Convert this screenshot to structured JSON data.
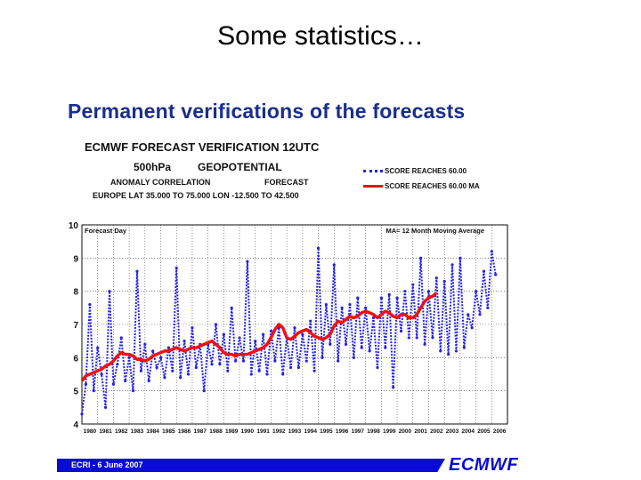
{
  "slide": {
    "title": "Some statistics…",
    "subtitle": "Permanent verifications of the forecasts"
  },
  "chart_header": {
    "line1": "ECMWF  FORECAST  VERIFICATION  12UTC",
    "level": "500hPa",
    "field": "GEOPOTENTIAL",
    "score_name": "ANOMALY CORRELATION",
    "forecast_label": "FORECAST",
    "domain": "EUROPE    LAT  35.000 TO  75.000  LON  -12.500 TO   42.500"
  },
  "legend": {
    "blue": "SCORE REACHES  60.00",
    "red": "SCORE REACHES  60.00 MA"
  },
  "footer": {
    "text": "ECRI  -  6 June 2007",
    "brand": "ECMWF"
  },
  "colors": {
    "monthly": "#2222ee",
    "moving_avg": "#ee1111",
    "brand": "#0a0ad8",
    "subtitle": "#1a2e8c"
  },
  "chart_data": {
    "type": "line",
    "ylabel": "Forecast Day",
    "annotation": "MA= 12 Month   Moving Average",
    "ylim": [
      4,
      10
    ],
    "yticks": [
      4,
      5,
      6,
      7,
      8,
      9,
      10
    ],
    "xlim": [
      1980,
      2007
    ],
    "xticks": [
      "1980",
      "1981",
      "1982",
      "1983",
      "1984",
      "1985",
      "1986",
      "1987",
      "1988",
      "1989",
      "1990",
      "1991",
      "1992",
      "1993",
      "1994",
      "1995",
      "1996",
      "1997",
      "1998",
      "1999",
      "2000",
      "2001",
      "2002",
      "2003",
      "2004",
      "2005",
      "2006"
    ],
    "grid": true,
    "series": [
      {
        "name": "SCORE REACHES  60.00",
        "style": "dotted",
        "x_start": 1980.0,
        "x_step": 0.25,
        "values": [
          4.3,
          5.2,
          7.6,
          5.0,
          6.3,
          5.5,
          4.5,
          8.0,
          5.2,
          5.8,
          6.6,
          5.3,
          6.0,
          5.0,
          8.6,
          5.6,
          6.4,
          5.3,
          6.2,
          5.7,
          6.0,
          5.4,
          6.3,
          5.6,
          8.7,
          5.4,
          6.5,
          5.5,
          6.9,
          5.7,
          6.4,
          5.0,
          6.4,
          5.8,
          7.0,
          5.8,
          6.7,
          5.6,
          7.5,
          5.9,
          6.6,
          5.9,
          8.9,
          5.5,
          6.5,
          5.6,
          6.7,
          5.5,
          6.8,
          5.9,
          6.9,
          5.5,
          6.6,
          5.7,
          6.9,
          5.7,
          6.7,
          5.9,
          7.1,
          5.6,
          9.3,
          6.0,
          7.6,
          6.4,
          8.8,
          5.9,
          7.5,
          6.4,
          7.6,
          6.0,
          7.8,
          6.3,
          7.5,
          6.2,
          7.2,
          5.7,
          7.8,
          6.3,
          7.9,
          5.1,
          7.8,
          6.8,
          8.0,
          6.6,
          8.2,
          6.6,
          9.0,
          6.4,
          8.0,
          6.6,
          8.4,
          6.2,
          8.3,
          6.1,
          8.8,
          6.2,
          9.0,
          6.3,
          7.3,
          6.9,
          8.0,
          7.3,
          8.6,
          7.5,
          9.2,
          8.5
        ]
      },
      {
        "name": "SCORE REACHES  60.00 MA",
        "style": "solid",
        "x_start": 1980.0,
        "x_step": 0.25,
        "values": [
          5.3,
          5.45,
          5.5,
          5.55,
          5.6,
          5.65,
          5.75,
          5.8,
          5.9,
          6.05,
          6.15,
          6.1,
          6.1,
          6.05,
          5.95,
          5.95,
          5.9,
          5.95,
          6.05,
          6.1,
          6.15,
          6.2,
          6.2,
          6.25,
          6.3,
          6.25,
          6.2,
          6.25,
          6.3,
          6.3,
          6.35,
          6.4,
          6.45,
          6.5,
          6.4,
          6.3,
          6.15,
          6.1,
          6.1,
          6.05,
          6.1,
          6.1,
          6.1,
          6.15,
          6.2,
          6.25,
          6.3,
          6.4,
          6.6,
          6.85,
          7.0,
          6.9,
          6.6,
          6.55,
          6.65,
          6.75,
          6.8,
          6.85,
          6.75,
          6.65,
          6.6,
          6.55,
          6.6,
          6.7,
          6.95,
          7.1,
          7.05,
          7.15,
          7.25,
          7.2,
          7.25,
          7.35,
          7.4,
          7.35,
          7.3,
          7.2,
          7.3,
          7.4,
          7.35,
          7.25,
          7.2,
          7.3,
          7.3,
          7.2,
          7.2,
          7.3,
          7.5,
          7.7,
          7.8,
          7.85,
          7.95
        ]
      }
    ]
  }
}
